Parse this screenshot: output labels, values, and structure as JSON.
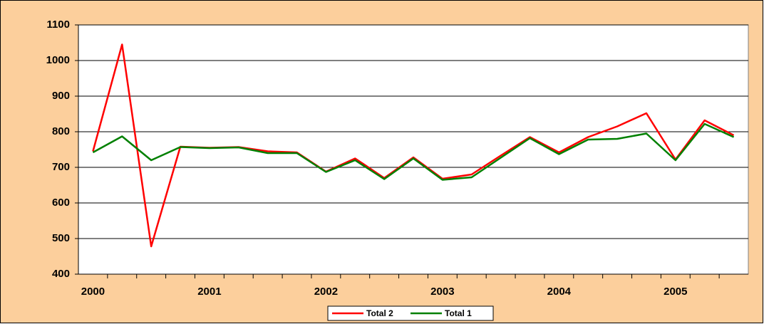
{
  "chart_data": {
    "type": "line",
    "categories": [
      "2000",
      null,
      null,
      null,
      "2001",
      null,
      null,
      null,
      "2002",
      null,
      null,
      null,
      "2003",
      null,
      null,
      null,
      "2004",
      null,
      null,
      null,
      "2005",
      null,
      null
    ],
    "series": [
      {
        "name": "Total 2",
        "color": "#ff0000",
        "values": [
          745,
          1045,
          478,
          758,
          755,
          757,
          745,
          742,
          688,
          725,
          670,
          728,
          668,
          680,
          733,
          785,
          742,
          785,
          815,
          852,
          722,
          832,
          790
        ]
      },
      {
        "name": "Total 1",
        "color": "#008000",
        "values": [
          742,
          787,
          720,
          757,
          754,
          756,
          740,
          740,
          687,
          720,
          667,
          725,
          665,
          672,
          727,
          782,
          737,
          778,
          780,
          795,
          720,
          822,
          785
        ]
      }
    ],
    "ylim": [
      400,
      1100
    ],
    "yticks": [
      400,
      500,
      600,
      700,
      800,
      900,
      1000,
      1100
    ],
    "grid": true,
    "legend": "bottom"
  }
}
